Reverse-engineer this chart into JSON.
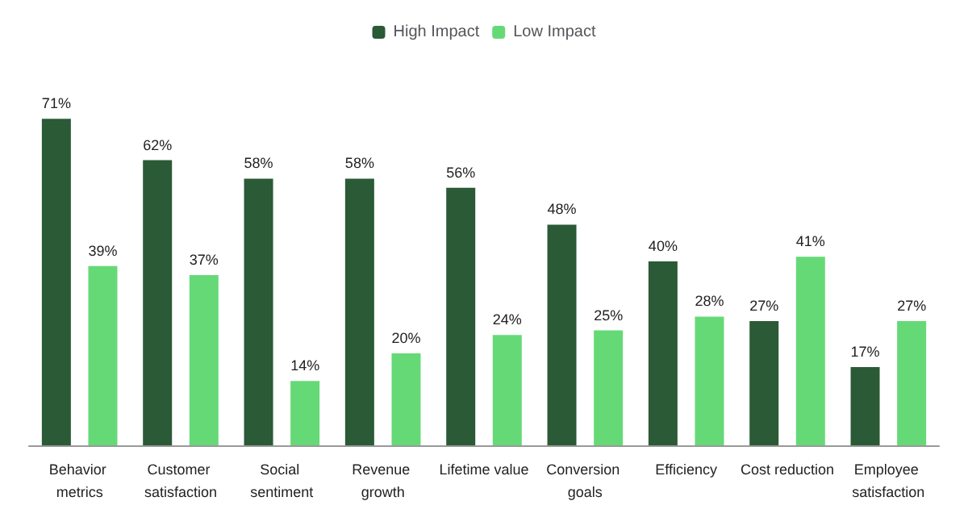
{
  "chart_data": {
    "type": "bar",
    "categories": [
      "Behavior metrics",
      "Customer satisfaction",
      "Social sentiment",
      "Revenue growth",
      "Lifetime value",
      "Conversion goals",
      "Efficiency",
      "Cost reduction",
      "Employee satisfaction"
    ],
    "series": [
      {
        "name": "High Impact",
        "color": "#2b5a36",
        "values": [
          71,
          62,
          58,
          58,
          56,
          48,
          40,
          27,
          17
        ],
        "value_labels": [
          "71%",
          "62%",
          "58%",
          "58%",
          "56%",
          "48%",
          "40%",
          "27%",
          "17%"
        ]
      },
      {
        "name": "Low Impact",
        "color": "#66d977",
        "values": [
          39,
          37,
          14,
          20,
          24,
          25,
          28,
          41,
          27
        ],
        "value_labels": [
          "39%",
          "37%",
          "14%",
          "20%",
          "24%",
          "25%",
          "28%",
          "41%",
          "27%"
        ]
      }
    ],
    "legend": "top",
    "tick_labels": "x"
  }
}
